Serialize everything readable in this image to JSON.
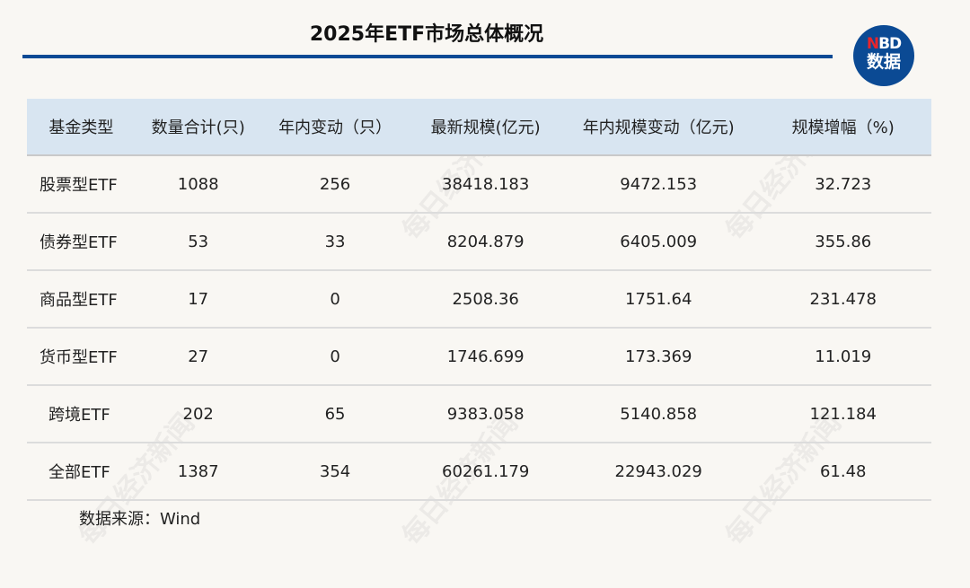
{
  "title": "2025年ETF市场总体概况",
  "logo": {
    "line1_accent": "N",
    "line1_rest": "BD",
    "line2": "数据"
  },
  "watermark": "每日经济新闻",
  "colors": {
    "accent": "#0b4a94",
    "header_bg": "#d8e5f1",
    "logo_red": "#e8252b"
  },
  "table": {
    "headers": [
      "基金类型",
      "数量合计(只)",
      "年内变动（只）",
      "最新规模(亿元)",
      "年内规模变动（亿元)",
      "规模增幅（%)"
    ],
    "rows": [
      [
        "股票型ETF",
        "1088",
        "256",
        "38418.183",
        "9472.153",
        "32.723"
      ],
      [
        "债券型ETF",
        "53",
        "33",
        "8204.879",
        "6405.009",
        "355.86"
      ],
      [
        "商品型ETF",
        "17",
        "0",
        "2508.36",
        "1751.64",
        "231.478"
      ],
      [
        "货币型ETF",
        "27",
        "0",
        "1746.699",
        "173.369",
        "11.019"
      ],
      [
        "跨境ETF",
        "202",
        "65",
        "9383.058",
        "5140.858",
        "121.184"
      ],
      [
        "全部ETF",
        "1387",
        "354",
        "60261.179",
        "22943.029",
        "61.48"
      ]
    ]
  },
  "source": "数据来源：Wind"
}
